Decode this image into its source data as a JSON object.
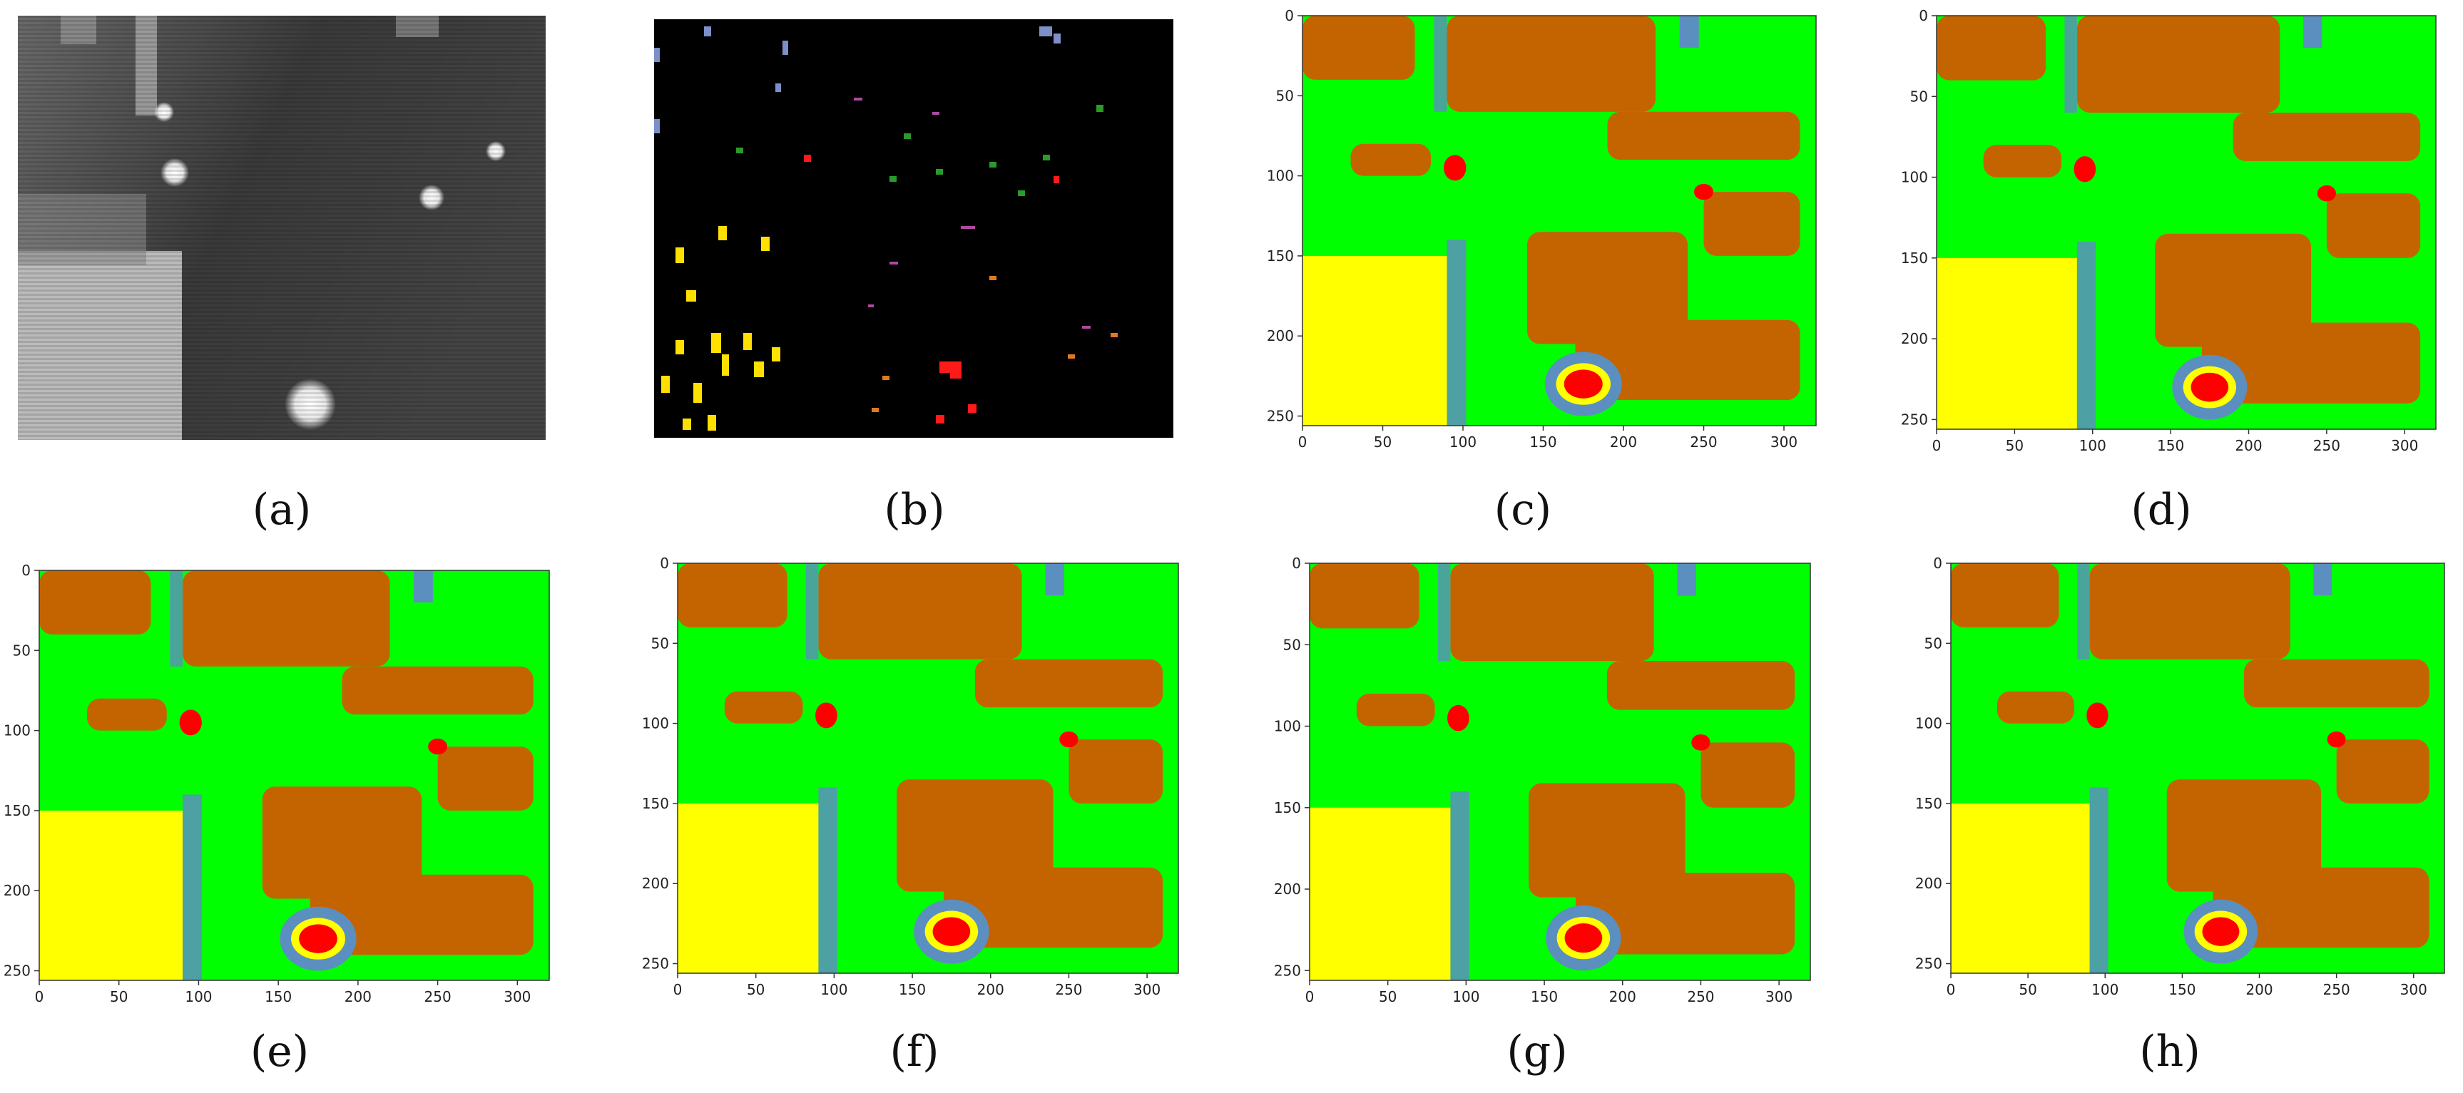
{
  "figure": {
    "captions": [
      "(a)",
      "(b)",
      "(c)",
      "(d)",
      "(e)",
      "(f)",
      "(g)",
      "(h)"
    ],
    "x_ticks": [
      "0",
      "50",
      "100",
      "150",
      "200",
      "250",
      "300"
    ],
    "y_ticks": [
      "0",
      "50",
      "100",
      "150",
      "200",
      "250"
    ],
    "colors": {
      "background_green": "#00ff00",
      "brown": "#c46400",
      "yellow": "#ffff00",
      "blue": "#5b8fc0",
      "red": "#ff0000",
      "black": "#000000"
    }
  },
  "chart_data": [
    {
      "type": "heatmap",
      "panel": "c",
      "x_ticks": [
        0,
        50,
        100,
        150,
        200,
        250,
        300
      ],
      "y_ticks": [
        0,
        50,
        100,
        150,
        200,
        250
      ],
      "xlim": [
        0,
        320
      ],
      "ylim": [
        256,
        0
      ]
    },
    {
      "type": "heatmap",
      "panel": "d",
      "x_ticks": [
        0,
        50,
        100,
        150,
        200,
        250,
        300
      ],
      "y_ticks": [
        0,
        50,
        100,
        150,
        200,
        250
      ],
      "xlim": [
        0,
        320
      ],
      "ylim": [
        256,
        0
      ]
    },
    {
      "type": "heatmap",
      "panel": "e",
      "x_ticks": [
        0,
        50,
        100,
        150,
        200,
        250,
        300
      ],
      "y_ticks": [
        0,
        50,
        100,
        150,
        200,
        250
      ],
      "xlim": [
        0,
        320
      ],
      "ylim": [
        256,
        0
      ]
    },
    {
      "type": "heatmap",
      "panel": "f",
      "x_ticks": [
        0,
        50,
        100,
        150,
        200,
        250,
        300
      ],
      "y_ticks": [
        0,
        50,
        100,
        150,
        200,
        250
      ],
      "xlim": [
        0,
        320
      ],
      "ylim": [
        256,
        0
      ]
    },
    {
      "type": "heatmap",
      "panel": "g",
      "x_ticks": [
        0,
        50,
        100,
        150,
        200,
        250,
        300
      ],
      "y_ticks": [
        0,
        50,
        100,
        150,
        200,
        250
      ],
      "xlim": [
        0,
        320
      ],
      "ylim": [
        256,
        0
      ]
    },
    {
      "type": "heatmap",
      "panel": "h",
      "x_ticks": [
        0,
        50,
        100,
        150,
        200,
        250,
        300
      ],
      "y_ticks": [
        0,
        50,
        100,
        150,
        200,
        250
      ],
      "xlim": [
        0,
        320
      ],
      "ylim": [
        256,
        0
      ]
    }
  ]
}
